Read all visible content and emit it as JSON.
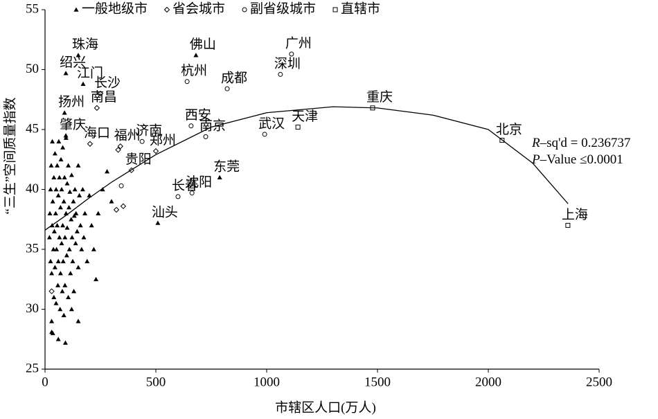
{
  "chart_data": {
    "type": "scatter",
    "xlabel": "市辖区人口(万人)",
    "ylabel": "“三生”空间质量指数",
    "xlim": [
      0,
      2500
    ],
    "ylim": [
      25,
      55
    ],
    "xticks": [
      0,
      500,
      1000,
      1500,
      2000,
      2500
    ],
    "yticks": [
      25,
      30,
      35,
      40,
      45,
      50,
      55
    ],
    "legend": "top",
    "series": [
      {
        "name": "一般地级市",
        "marker": "triangle",
        "color": "#000",
        "x": [
          150,
          94,
          172,
          88,
          94,
          681,
          788,
          509,
          20,
          22,
          25,
          25,
          28,
          30,
          30,
          32,
          33,
          35,
          35,
          38,
          40,
          40,
          42,
          45,
          45,
          48,
          50,
          50,
          52,
          55,
          55,
          58,
          60,
          60,
          62,
          65,
          65,
          68,
          70,
          70,
          72,
          75,
          75,
          78,
          80,
          80,
          82,
          85,
          85,
          88,
          90,
          90,
          92,
          95,
          95,
          98,
          100,
          100,
          105,
          105,
          108,
          110,
          112,
          115,
          118,
          120,
          122,
          125,
          128,
          130,
          132,
          135,
          138,
          140,
          145,
          150,
          150,
          155,
          160,
          165,
          170,
          175,
          180,
          190,
          200,
          210,
          220,
          230,
          240,
          260,
          280,
          300,
          150,
          120,
          60,
          30
        ],
        "values": [
          51.2,
          49.7,
          48.8,
          46.4,
          44.5,
          51.2,
          41.0,
          37.2,
          36,
          38,
          34,
          40,
          42,
          29,
          33,
          37,
          44,
          28,
          39,
          35,
          41,
          31,
          36.5,
          43,
          33.5,
          38,
          40,
          30.5,
          35,
          42,
          37,
          32,
          39.5,
          34,
          44,
          36,
          41,
          30,
          38.5,
          33,
          42.5,
          35.5,
          40,
          31.5,
          37,
          43.5,
          34,
          39,
          29.5,
          41,
          36,
          32,
          27.2,
          38,
          44.3,
          34.5,
          40.5,
          36.8,
          31,
          42,
          38.5,
          35,
          39.8,
          33,
          37.5,
          41.2,
          36,
          34,
          39,
          31.5,
          37.8,
          40,
          35.5,
          38,
          36.5,
          42,
          33.5,
          39.5,
          37,
          35,
          40,
          36,
          38,
          34,
          39.5,
          37,
          35,
          32.5,
          38,
          40,
          41.5,
          39,
          29,
          30,
          27.5,
          28.1
        ],
        "labels": [
          "珠海",
          "绍兴",
          "江门",
          "扬州",
          "肇庆",
          "佛山",
          "东莞",
          "汕头",
          null,
          null,
          null,
          null,
          null,
          null,
          null,
          null,
          null,
          null,
          null,
          null,
          null,
          null,
          null,
          null,
          null,
          null,
          null,
          null,
          null,
          null,
          null,
          null,
          null,
          null,
          null,
          null,
          null,
          null,
          null,
          null,
          null,
          null,
          null,
          null,
          null,
          null,
          null,
          null,
          null,
          null,
          null,
          null,
          null,
          null,
          null,
          null,
          null,
          null,
          null,
          null,
          null,
          null,
          null,
          null,
          null,
          null,
          null,
          null,
          null,
          null,
          null,
          null,
          null,
          null,
          null,
          null,
          null,
          null,
          null,
          null,
          null,
          null,
          null,
          null,
          null,
          null,
          null,
          null,
          null,
          null,
          null,
          null,
          null,
          null
        ]
      },
      {
        "name": "省会城市",
        "marker": "diamond",
        "color": "#000",
        "x": [
          250,
          234,
          203,
          340,
          390,
          500,
          322,
          353,
          30,
          330
        ],
        "values": [
          48.0,
          46.8,
          43.8,
          43.6,
          41.6,
          43.2,
          38.3,
          38.6,
          31.5,
          43.3
        ],
        "labels": [
          "长沙",
          "南昌",
          "海口",
          "福州",
          "贵阳",
          "郑州",
          null,
          null,
          null,
          null
        ]
      },
      {
        "name": "副省级城市",
        "marker": "circle",
        "color": "#000",
        "x": [
          641,
          822,
          1112,
          1062,
          659,
          725,
          991,
          438,
          663,
          600,
          344
        ],
        "values": [
          49.0,
          48.4,
          51.3,
          49.6,
          45.3,
          44.4,
          44.6,
          44.0,
          39.7,
          39.4,
          40.3
        ],
        "labels": [
          "杭州",
          "成都",
          "广州",
          "深圳",
          "西安",
          "南京",
          "武汉",
          "济南",
          "沈阳",
          "长春",
          null
        ]
      },
      {
        "name": "直辖市",
        "marker": "square",
        "color": "#000",
        "x": [
          1141,
          1478,
          2062,
          2359
        ],
        "values": [
          45.2,
          46.8,
          44.1,
          37.0
        ],
        "labels": [
          "天津",
          "重庆",
          "北京",
          "上海"
        ]
      }
    ],
    "fit": {
      "x": [
        0,
        100,
        200,
        300,
        500,
        750,
        1000,
        1300,
        1500,
        1750,
        2000,
        2200,
        2360
      ],
      "values": [
        36.6,
        37.9,
        39.3,
        40.6,
        42.9,
        45.2,
        46.4,
        46.9,
        46.8,
        46.2,
        45.0,
        42.2,
        38.8
      ]
    },
    "annotations": [
      [
        "R",
        "–sq'd = 0.236737"
      ],
      [
        "P",
        "–Value ≤0.0001"
      ]
    ]
  }
}
